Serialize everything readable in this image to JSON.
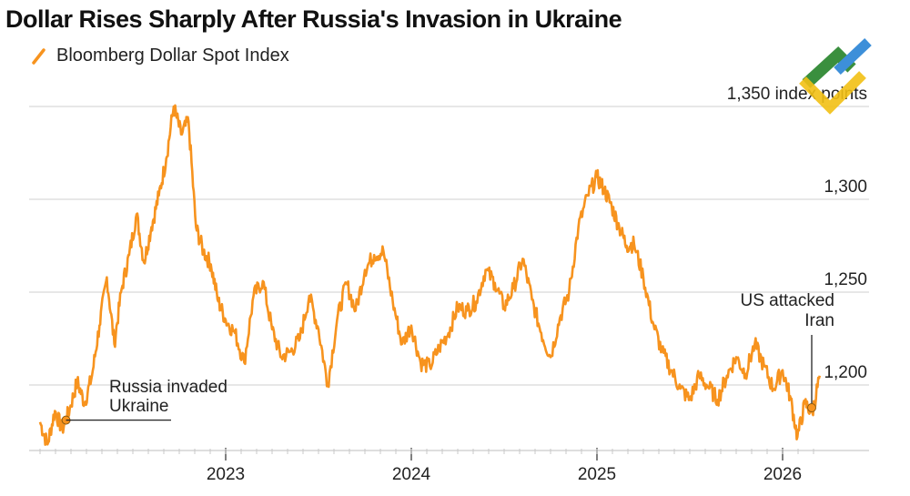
{
  "title": "Dollar Rises Sharply After Russia's Invasion in Ukraine",
  "legend": {
    "label": "Bloomberg Dollar Spot Index",
    "color": "#f7931e"
  },
  "chart_data": {
    "type": "line",
    "title": "Dollar Rises Sharply After Russia's Invasion in Ukraine",
    "xlabel": "",
    "ylabel": "index points",
    "ylim": [
      1160,
      1355
    ],
    "xlim": [
      2022.0,
      2026.5
    ],
    "y_ticks": [
      {
        "value": 1350,
        "label": "1,350 index points"
      },
      {
        "value": 1300,
        "label": "1,300"
      },
      {
        "value": 1250,
        "label": "1,250"
      },
      {
        "value": 1200,
        "label": "1,200"
      }
    ],
    "x_ticks": [
      {
        "value": 2023,
        "label": "2023"
      },
      {
        "value": 2024,
        "label": "2024"
      },
      {
        "value": 2025,
        "label": "2025"
      },
      {
        "value": 2026,
        "label": "2026"
      }
    ],
    "series": [
      {
        "name": "Bloomberg Dollar Spot Index",
        "color": "#f7931e",
        "x": [
          2022.0,
          2022.04,
          2022.08,
          2022.12,
          2022.16,
          2022.2,
          2022.24,
          2022.28,
          2022.32,
          2022.36,
          2022.4,
          2022.44,
          2022.48,
          2022.52,
          2022.56,
          2022.6,
          2022.64,
          2022.68,
          2022.72,
          2022.76,
          2022.8,
          2022.84,
          2022.88,
          2022.92,
          2022.96,
          2023.0,
          2023.05,
          2023.1,
          2023.15,
          2023.2,
          2023.25,
          2023.3,
          2023.35,
          2023.4,
          2023.45,
          2023.5,
          2023.55,
          2023.6,
          2023.65,
          2023.7,
          2023.75,
          2023.8,
          2023.85,
          2023.9,
          2023.95,
          2024.0,
          2024.05,
          2024.1,
          2024.15,
          2024.2,
          2024.25,
          2024.3,
          2024.35,
          2024.4,
          2024.45,
          2024.5,
          2024.55,
          2024.6,
          2024.65,
          2024.7,
          2024.75,
          2024.8,
          2024.85,
          2024.9,
          2024.95,
          2025.0,
          2025.04,
          2025.08,
          2025.12,
          2025.16,
          2025.2,
          2025.25,
          2025.3,
          2025.35,
          2025.4,
          2025.45,
          2025.5,
          2025.55,
          2025.6,
          2025.65,
          2025.7,
          2025.75,
          2025.8,
          2025.85,
          2025.9,
          2025.95,
          2026.0,
          2026.04,
          2026.08,
          2026.12,
          2026.16,
          2026.2
        ],
        "values": [
          1180,
          1168,
          1186,
          1176,
          1187,
          1202,
          1190,
          1205,
          1232,
          1258,
          1222,
          1252,
          1270,
          1292,
          1266,
          1285,
          1302,
          1322,
          1350,
          1335,
          1342,
          1285,
          1272,
          1265,
          1245,
          1235,
          1228,
          1212,
          1248,
          1256,
          1230,
          1215,
          1218,
          1225,
          1248,
          1230,
          1200,
          1235,
          1255,
          1240,
          1262,
          1270,
          1272,
          1245,
          1222,
          1232,
          1212,
          1210,
          1220,
          1228,
          1242,
          1240,
          1245,
          1262,
          1255,
          1242,
          1252,
          1268,
          1246,
          1228,
          1215,
          1236,
          1250,
          1285,
          1302,
          1312,
          1305,
          1296,
          1285,
          1275,
          1276,
          1258,
          1234,
          1218,
          1208,
          1198,
          1192,
          1205,
          1199,
          1192,
          1205,
          1215,
          1206,
          1222,
          1210,
          1198,
          1208,
          1194,
          1172,
          1190,
          1185,
          1205
        ]
      }
    ],
    "annotations": [
      {
        "label_line1": "Russia invaded",
        "label_line2": "Ukraine",
        "x": 2022.14,
        "y": 1185
      },
      {
        "label_line1": "US attacked",
        "label_line2": "Iran",
        "x": 2026.17,
        "y": 1186
      }
    ]
  }
}
